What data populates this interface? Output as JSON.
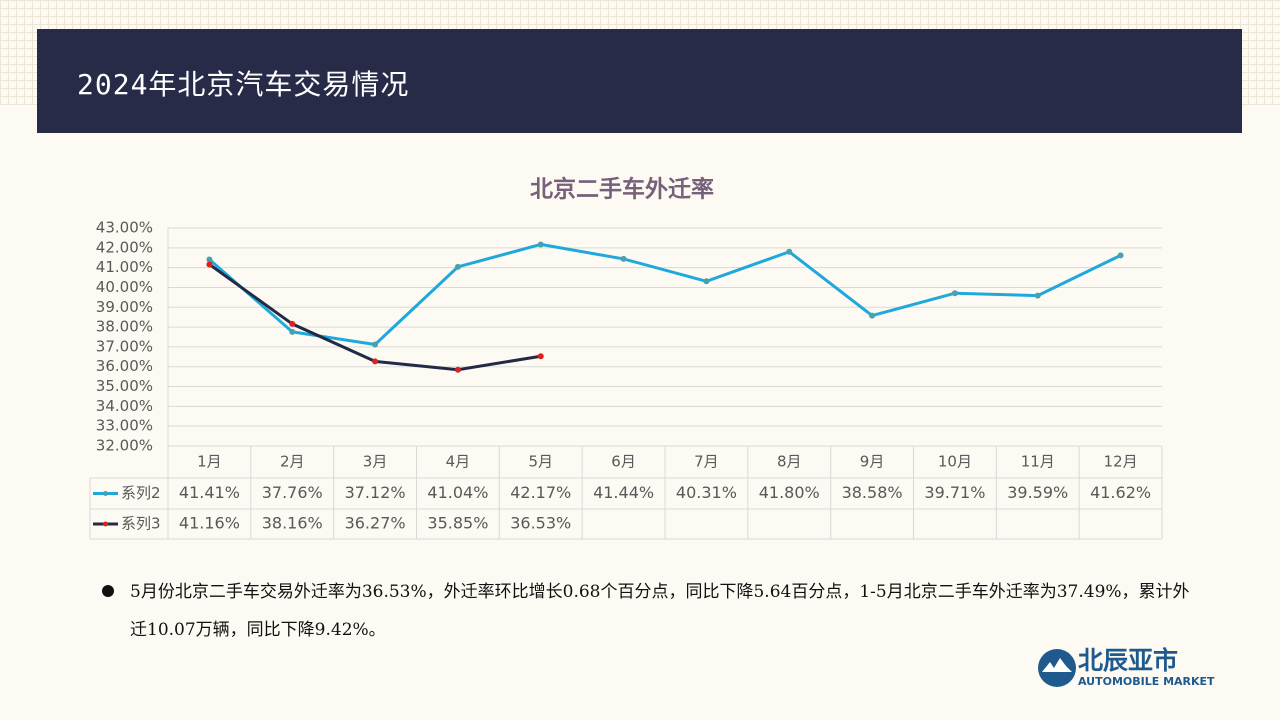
{
  "header": {
    "title": "2024年北京汽车交易情况"
  },
  "chart_data": {
    "type": "line",
    "title": "北京二手车外迁率",
    "categories": [
      "1月",
      "2月",
      "3月",
      "4月",
      "5月",
      "6月",
      "7月",
      "8月",
      "9月",
      "10月",
      "11月",
      "12月"
    ],
    "series": [
      {
        "name": "系列2",
        "color": "#1fa8dc",
        "marker_color": "#4aa0ac",
        "values": [
          41.41,
          37.76,
          37.12,
          41.04,
          42.17,
          41.44,
          40.31,
          41.8,
          38.58,
          39.71,
          39.59,
          41.62
        ],
        "value_labels": [
          "41.41%",
          "37.76%",
          "37.12%",
          "41.04%",
          "42.17%",
          "41.44%",
          "40.31%",
          "41.80%",
          "38.58%",
          "39.71%",
          "39.59%",
          "41.62%"
        ]
      },
      {
        "name": "系列3",
        "color": "#232a45",
        "marker_color": "#e0201b",
        "values": [
          41.16,
          38.16,
          36.27,
          35.85,
          36.53,
          null,
          null,
          null,
          null,
          null,
          null,
          null
        ],
        "value_labels": [
          "41.16%",
          "38.16%",
          "36.27%",
          "35.85%",
          "36.53%",
          null,
          null,
          null,
          null,
          null,
          null,
          null
        ]
      }
    ],
    "ylim": [
      32,
      43
    ],
    "yticks": [
      {
        "value": 32,
        "label": "32.00%"
      },
      {
        "value": 33,
        "label": "33.00%"
      },
      {
        "value": 34,
        "label": "34.00%"
      },
      {
        "value": 35,
        "label": "35.00%"
      },
      {
        "value": 36,
        "label": "36.00%"
      },
      {
        "value": 37,
        "label": "37.00%"
      },
      {
        "value": 38,
        "label": "38.00%"
      },
      {
        "value": 39,
        "label": "39.00%"
      },
      {
        "value": 40,
        "label": "40.00%"
      },
      {
        "value": 41,
        "label": "41.00%"
      },
      {
        "value": 42,
        "label": "42.00%"
      },
      {
        "value": 43,
        "label": "43.00%"
      }
    ],
    "grid": true,
    "data_table": true
  },
  "note": "5月份北京二手车交易外迁率为36.53%，外迁率环比增长0.68个百分点，同比下降5.64百分点，1-5月北京二手车外迁率为37.49%，累计外迁10.07万辆，同比下降9.42%。",
  "logo": {
    "name": "北辰亚市",
    "subtitle": "AUTOMOBILE MARKET"
  }
}
